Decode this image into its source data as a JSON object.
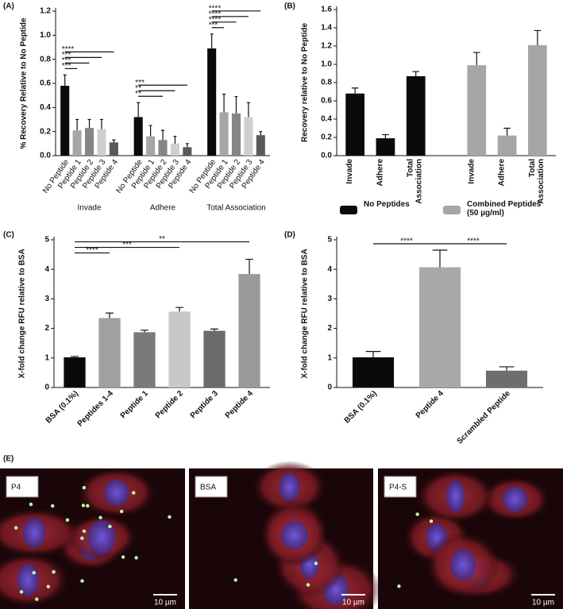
{
  "chart_data": [
    {
      "type": "bar",
      "panel": "(A)",
      "ylabel": "% Recovery Relative to No Peptide",
      "ylim": [
        0,
        1.2
      ],
      "yticks": [
        {
          "value": 0,
          "label": "0.0"
        },
        0.2,
        0.4,
        0.6,
        0.8,
        {
          "value": 1,
          "label": "1.0"
        },
        1.2
      ],
      "categories": [
        "No Peptide",
        "Peptide 1",
        "Peptide 2",
        "Peptide 3",
        "Peptide 4"
      ],
      "colors": [
        "#0a0a0a",
        "#a6a6a6",
        "#858585",
        "#cfcfcf",
        "#595959"
      ],
      "groups": [
        {
          "name": "Invade",
          "values": [
            0.58,
            0.21,
            0.23,
            0.22,
            0.11
          ],
          "errors": [
            0.09,
            0.09,
            0.07,
            0.08,
            0.02
          ],
          "brackets": [
            {
              "label": "***",
              "from": 0,
              "to": 1
            },
            {
              "label": "***",
              "from": 0,
              "to": 2
            },
            {
              "label": "***",
              "from": 0,
              "to": 3
            },
            {
              "label": "****",
              "from": 0,
              "to": 4
            }
          ]
        },
        {
          "name": "Adhere",
          "values": [
            0.32,
            0.16,
            0.13,
            0.1,
            0.07
          ],
          "errors": [
            0.12,
            0.09,
            0.08,
            0.06,
            0.03
          ],
          "brackets": [
            {
              "label": "**",
              "from": 0,
              "to": 2
            },
            {
              "label": "**",
              "from": 0,
              "to": 3
            },
            {
              "label": "***",
              "from": 0,
              "to": 4
            }
          ]
        },
        {
          "name": "Total Association",
          "values": [
            0.89,
            0.36,
            0.35,
            0.32,
            0.17
          ],
          "errors": [
            0.12,
            0.15,
            0.14,
            0.12,
            0.03
          ],
          "brackets": [
            {
              "label": "***",
              "from": 0,
              "to": 1
            },
            {
              "label": "****",
              "from": 0,
              "to": 2
            },
            {
              "label": "****",
              "from": 0,
              "to": 3
            },
            {
              "label": "****",
              "from": 0,
              "to": 4
            }
          ]
        }
      ]
    },
    {
      "type": "bar",
      "panel": "(B)",
      "ylabel": "Recovery relative to No Peptide",
      "ylim": [
        0,
        1.6
      ],
      "yticks": [
        {
          "value": 0,
          "label": "0.0"
        },
        0.2,
        0.4,
        0.6,
        0.8,
        {
          "value": 1,
          "label": "1.0"
        },
        1.2,
        1.4,
        1.6
      ],
      "categories": [
        "Invade",
        "Adhere",
        "Total Association"
      ],
      "series": [
        {
          "name": "No Peptides",
          "color": "#0a0a0a",
          "values": [
            0.68,
            0.19,
            0.87
          ],
          "errors": [
            0.06,
            0.04,
            0.05
          ]
        },
        {
          "name": "Combined Peptides (50 µg/ml)",
          "color": "#a6a6a6",
          "values": [
            0.99,
            0.22,
            1.21
          ],
          "errors": [
            0.14,
            0.08,
            0.16
          ]
        }
      ]
    },
    {
      "type": "bar",
      "panel": "(C)",
      "ylabel": "X-fold change RFU relative to BSA",
      "ylim": [
        0,
        5
      ],
      "yticks": [
        0,
        1,
        2,
        3,
        4,
        5
      ],
      "categories": [
        "BSA (0.1%)",
        "Peptides 1-4",
        "Peptide 1",
        "Peptide 2",
        "Peptide 3",
        "Peptide 4"
      ],
      "values": [
        1.02,
        2.35,
        1.87,
        2.57,
        1.92,
        3.84
      ],
      "errors": [
        0.03,
        0.17,
        0.07,
        0.14,
        0.06,
        0.5
      ],
      "colors": [
        "#0a0a0a",
        "#a0a0a0",
        "#7a7a7a",
        "#c8c8c8",
        "#6b6b6b",
        "#9a9a9a"
      ],
      "brackets": [
        {
          "label": "****",
          "from": 0,
          "to": 1
        },
        {
          "label": "***",
          "from": 0,
          "to": 3
        },
        {
          "label": "**",
          "from": 0,
          "to": 5
        }
      ]
    },
    {
      "type": "bar",
      "panel": "(D)",
      "ylabel": "X-fold change RFU relative to BSA",
      "ylim": [
        0,
        5
      ],
      "yticks": [
        0,
        1,
        2,
        3,
        4,
        5
      ],
      "categories": [
        "BSA (0.1%)",
        "Peptide 4",
        "Scrambled Peptide"
      ],
      "values": [
        1.02,
        4.07,
        0.57
      ],
      "errors": [
        0.2,
        0.58,
        0.13
      ],
      "colors": [
        "#0a0a0a",
        "#a8a8a8",
        "#6e6e6e"
      ],
      "brackets": [
        {
          "label": "****",
          "from": 0,
          "to": 1
        },
        {
          "label": "****",
          "from": 1,
          "to": 2
        }
      ]
    }
  ],
  "images": {
    "panel": "(E)",
    "items": [
      {
        "label": "P4",
        "scale": "10 µm"
      },
      {
        "label": "BSA",
        "scale": "10 µm"
      },
      {
        "label": "P4-S",
        "scale": "10 µm"
      }
    ]
  }
}
